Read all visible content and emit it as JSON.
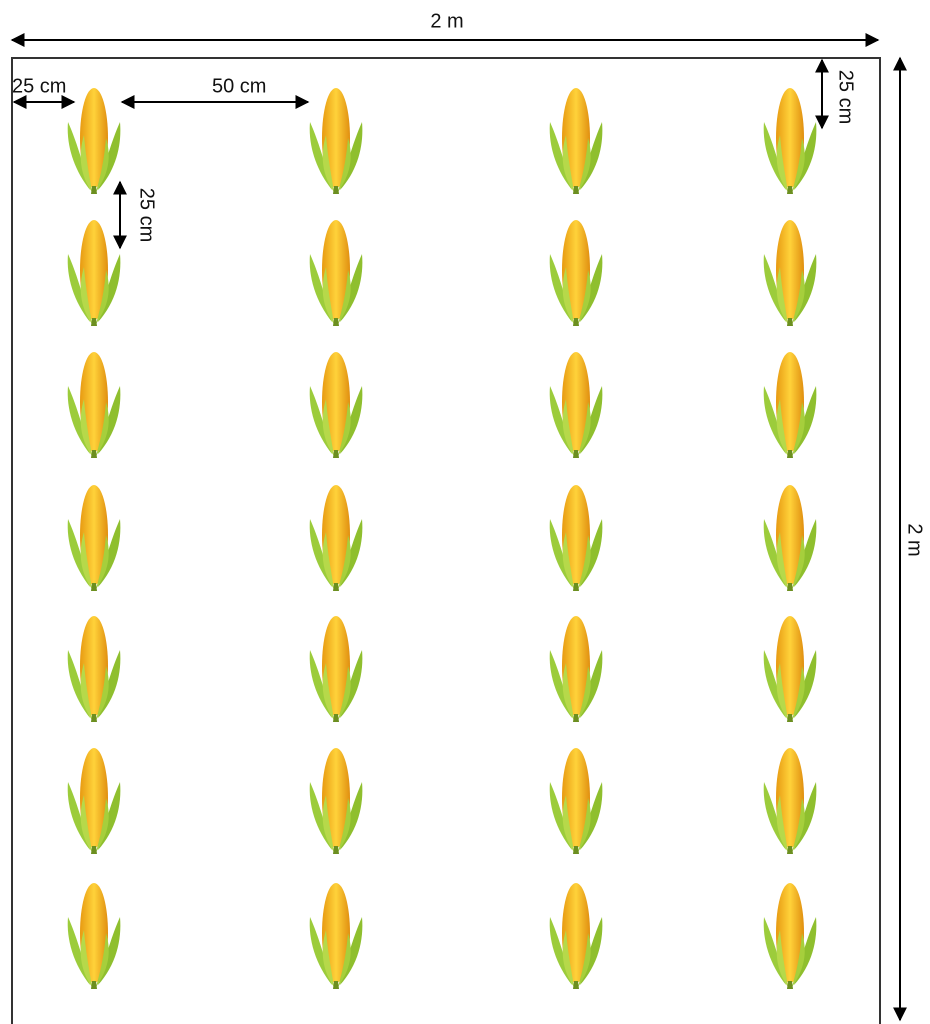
{
  "labels": {
    "total_width": "2 m",
    "total_height": "2 m",
    "edge_margin": "25 cm",
    "row_spacing": "50 cm",
    "plant_spacing": "25 cm",
    "top_margin": "25 cm"
  }
}
